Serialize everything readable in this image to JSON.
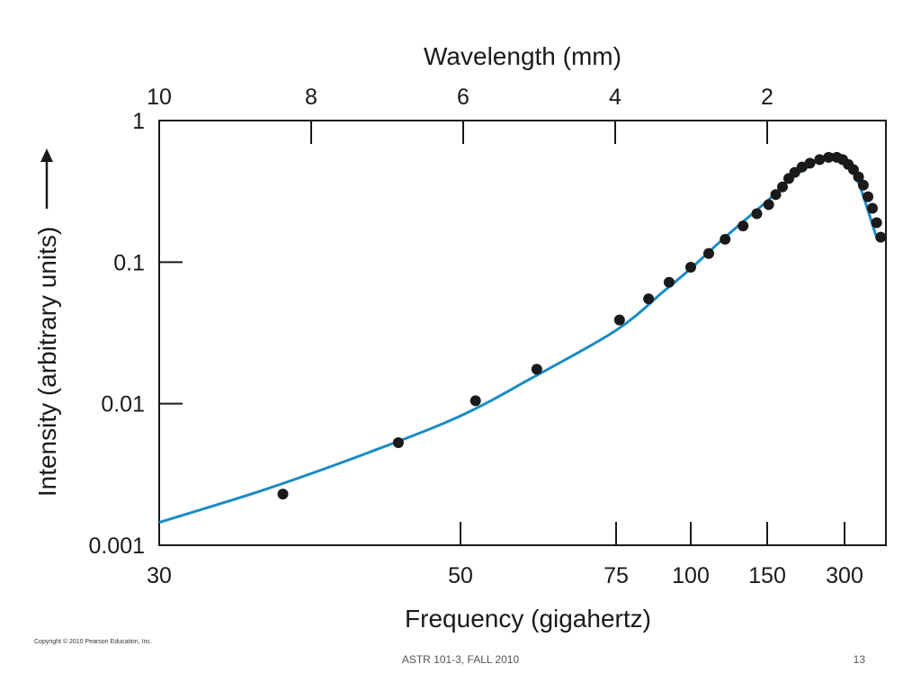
{
  "chart_data": {
    "type": "scatter",
    "ylabel": "Intensity (arbitrary units)",
    "xlabel": "Frequency (gigahertz)",
    "x2label": "Wavelength (mm)",
    "yscale": "log",
    "ylim": [
      0.001,
      1
    ],
    "yticks": [
      {
        "value": 0.001,
        "label": "0.001"
      },
      {
        "value": 0.01,
        "label": "0.01"
      },
      {
        "value": 0.1,
        "label": "0.1"
      },
      {
        "value": 1,
        "label": "1"
      }
    ],
    "xticks_bottom": [
      {
        "value": 30,
        "label": "30"
      },
      {
        "value": 50,
        "label": "50"
      },
      {
        "value": 75,
        "label": "75"
      },
      {
        "value": 100,
        "label": "100"
      },
      {
        "value": 150,
        "label": "150"
      },
      {
        "value": 300,
        "label": "300"
      }
    ],
    "xticks_top": [
      {
        "value": 10,
        "label": "10"
      },
      {
        "value": 8,
        "label": "8"
      },
      {
        "value": 6,
        "label": "6"
      },
      {
        "value": 4,
        "label": "4"
      },
      {
        "value": 2,
        "label": "2"
      }
    ],
    "series": [
      {
        "kind": "curve",
        "color": "#1a8bc4",
        "x": [
          30,
          36,
          43,
          50,
          60,
          75,
          90,
          100,
          120,
          150,
          200,
          300,
          400
        ],
        "y": [
          0.00145,
          0.0025,
          0.0046,
          0.0082,
          0.015,
          0.033,
          0.062,
          0.09,
          0.15,
          0.27,
          0.43,
          0.55,
          0.15
        ]
      },
      {
        "kind": "points",
        "color": "#1a1a1a",
        "x": [
          37,
          45,
          52,
          61,
          76,
          85,
          92,
          100,
          110,
          120,
          132,
          142,
          152,
          162,
          172,
          182,
          192,
          205,
          220,
          240,
          260,
          280,
          295,
          310,
          325,
          340,
          355,
          370,
          385,
          400,
          415
        ],
        "y": [
          0.0023,
          0.0053,
          0.0105,
          0.0175,
          0.039,
          0.055,
          0.072,
          0.092,
          0.115,
          0.145,
          0.18,
          0.22,
          0.255,
          0.3,
          0.34,
          0.39,
          0.43,
          0.47,
          0.5,
          0.53,
          0.55,
          0.55,
          0.53,
          0.49,
          0.45,
          0.4,
          0.35,
          0.29,
          0.24,
          0.19,
          0.15
        ]
      }
    ]
  },
  "copyright": "Copyright © 2010 Pearson Education, Inc.",
  "footer": {
    "course": "ASTR 101-3, FALL 2010",
    "page": "13"
  }
}
